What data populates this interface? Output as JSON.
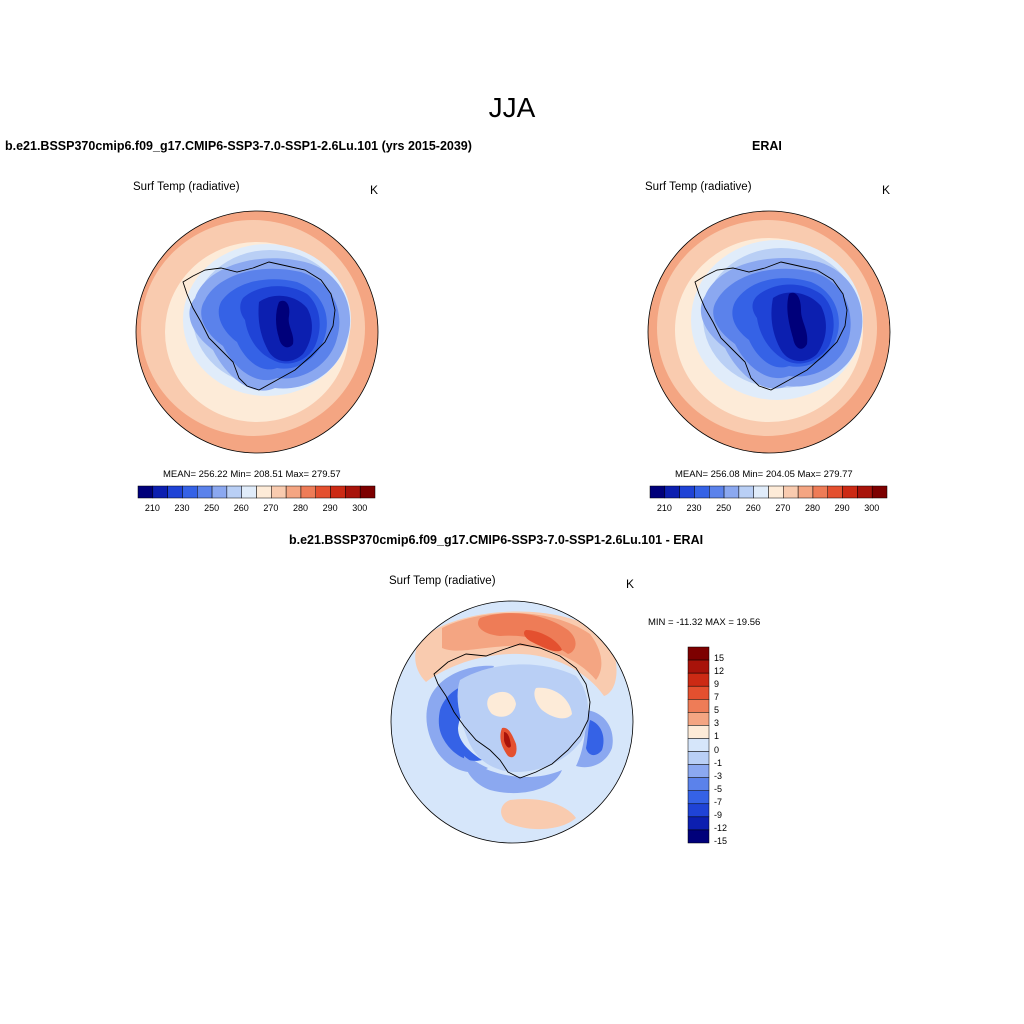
{
  "figure": {
    "season": "JJA",
    "colors": {
      "abs_palette": [
        "#00007a",
        "#0c1fb0",
        "#1f43d6",
        "#3562e6",
        "#5b82eb",
        "#8ba8f0",
        "#b9cff5",
        "#e0ecfa",
        "#fdebd8",
        "#f9cbaf",
        "#f4a582",
        "#ee7c57",
        "#e4502f",
        "#cc2a14",
        "#a8130a",
        "#7d0000"
      ],
      "diff_palette": [
        "#7d0000",
        "#a8130a",
        "#cc2a14",
        "#e4502f",
        "#ee7c57",
        "#f4a582",
        "#fdebd8",
        "#d6e6fa",
        "#b9cff5",
        "#8ba8f0",
        "#5b82eb",
        "#3562e6",
        "#1f43d6",
        "#0c1fb0",
        "#00007a"
      ]
    },
    "panels": {
      "model": {
        "title": "b.e21.BSSP370cmip6.f09_g17.CMIP6-SSP3-7.0-SSP1-2.6Lu.101 (yrs 2015-2039)",
        "variable": "Surf Temp (radiative)",
        "units": "K",
        "stats": "MEAN= 256.22  Min= 208.51  Max= 279.57"
      },
      "obs": {
        "title": "ERAI",
        "variable": "Surf Temp (radiative)",
        "units": "K",
        "stats": "MEAN= 256.08  Min= 204.05  Max= 279.77"
      },
      "diff": {
        "title": "b.e21.BSSP370cmip6.f09_g17.CMIP6-SSP3-7.0-SSP1-2.6Lu.101 - ERAI",
        "variable": "Surf Temp (radiative)",
        "units": "K",
        "minmax": "MIN = -11.32 MAX =  19.56"
      }
    }
  },
  "chart_data": [
    {
      "type": "heatmap",
      "title": "Surf Temp (radiative)",
      "projection": "south polar stereographic",
      "units": "K",
      "statistics": {
        "mean": 256.22,
        "min": 208.51,
        "max": 279.57
      },
      "colorbar": {
        "ticks": [
          "210",
          "230",
          "250",
          "260",
          "270",
          "280",
          "290",
          "300"
        ],
        "levels": 15
      }
    },
    {
      "type": "heatmap",
      "title": "Surf Temp (radiative)",
      "projection": "south polar stereographic",
      "units": "K",
      "statistics": {
        "mean": 256.08,
        "min": 204.05,
        "max": 279.77
      },
      "colorbar": {
        "ticks": [
          "210",
          "230",
          "250",
          "260",
          "270",
          "280",
          "290",
          "300"
        ],
        "levels": 15
      }
    },
    {
      "type": "heatmap",
      "title": "Surf Temp (radiative)",
      "projection": "south polar stereographic",
      "units": "K",
      "statistics": {
        "min": -11.32,
        "max": 19.56
      },
      "colorbar": {
        "ticks": [
          "15",
          "12",
          "9",
          "7",
          "5",
          "3",
          "1",
          "0",
          "-1",
          "-3",
          "-5",
          "-7",
          "-9",
          "-12",
          "-15"
        ]
      }
    }
  ]
}
